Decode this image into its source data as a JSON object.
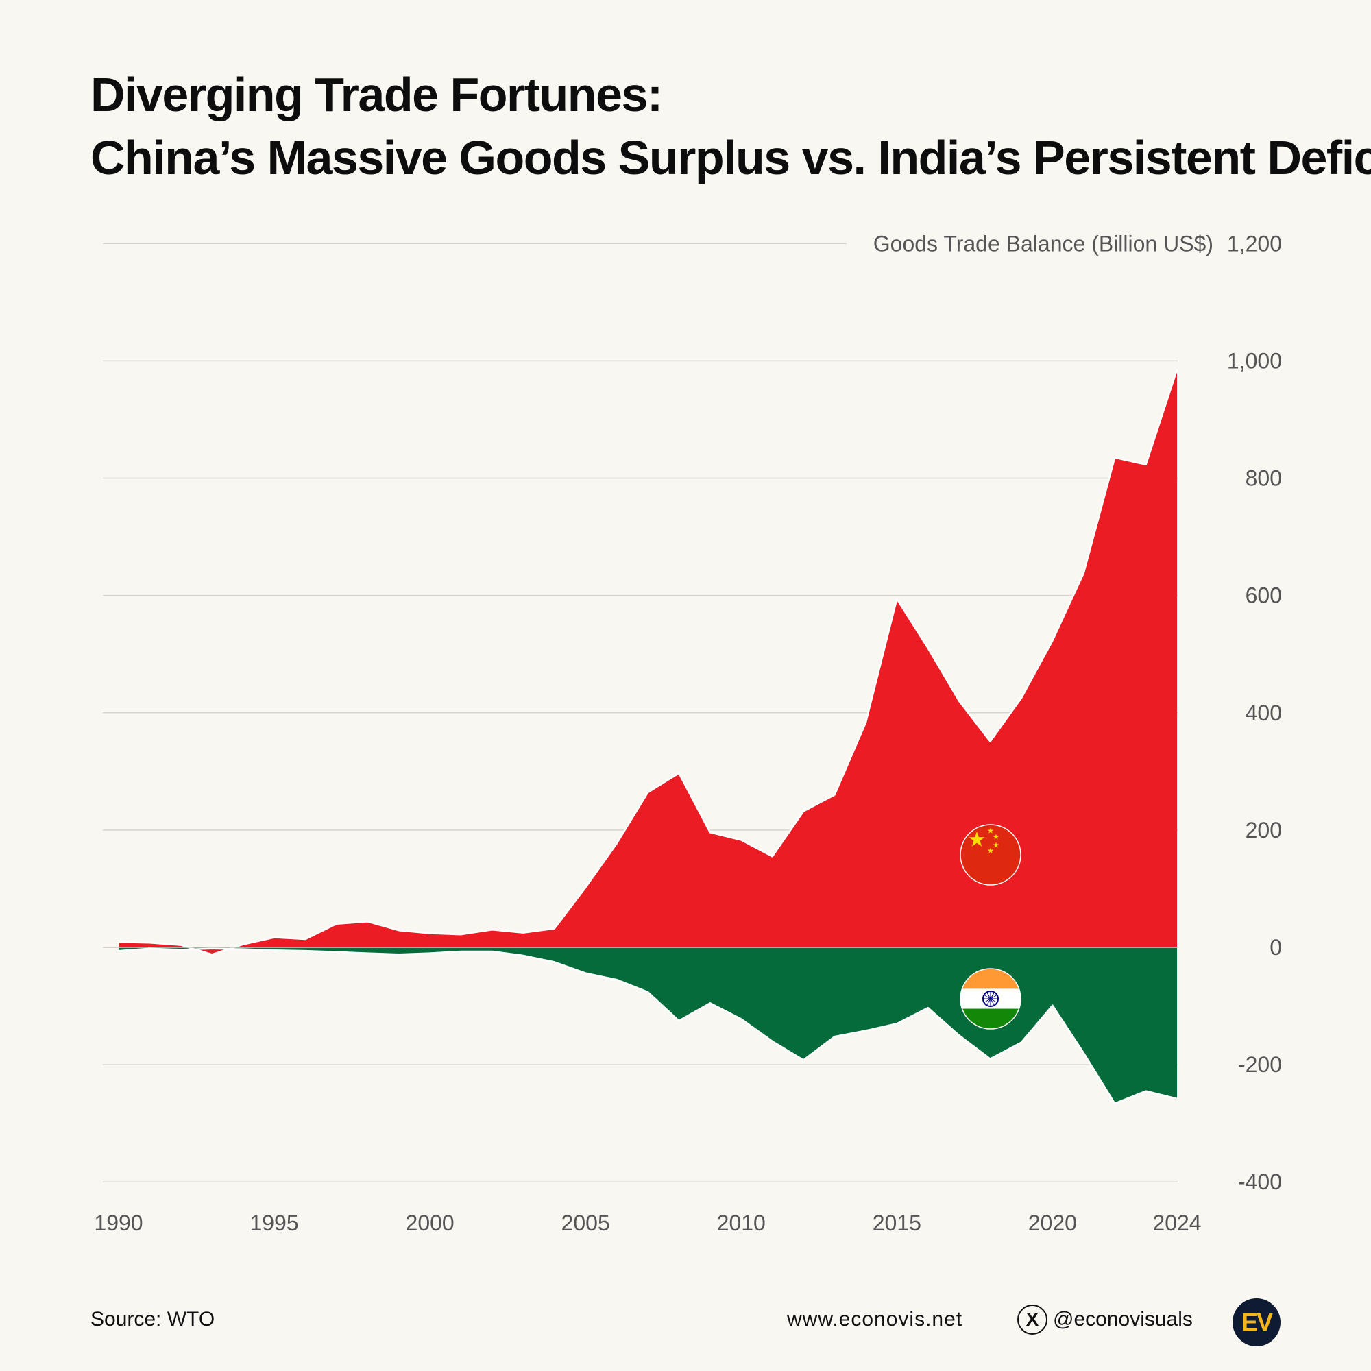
{
  "header": {
    "title_line1": "Diverging Trade Fortunes:",
    "title_line2": "China’s Massive Goods Surplus vs. India’s Persistent Deficit"
  },
  "footer": {
    "source": "Source: WTO",
    "website": "www.econovis.net",
    "handle": "@econovisuals",
    "x_icon_glyph": "X",
    "logo_text": "EV"
  },
  "chart_data": {
    "type": "area",
    "title": "",
    "ylabel": "Goods Trade Balance (Billion US$)",
    "xlabel": "",
    "ylim": [
      -400,
      1200
    ],
    "xlim": [
      1990,
      2024
    ],
    "yticks": [
      -400,
      -200,
      0,
      200,
      400,
      600,
      800,
      1000,
      1200
    ],
    "ytick_labels": [
      "-400",
      "-200",
      "0",
      "200",
      "400",
      "600",
      "800",
      "1,000",
      "1,200"
    ],
    "xticks": [
      1990,
      1995,
      2000,
      2005,
      2010,
      2015,
      2020,
      2024
    ],
    "xtick_labels": [
      "1990",
      "1995",
      "2000",
      "2005",
      "2010",
      "2015",
      "2020",
      "2024"
    ],
    "grid": true,
    "x": [
      1990,
      1991,
      1992,
      1993,
      1994,
      1995,
      1996,
      1997,
      1998,
      1999,
      2000,
      2001,
      2002,
      2003,
      2004,
      2005,
      2006,
      2007,
      2008,
      2009,
      2010,
      2011,
      2012,
      2013,
      2014,
      2015,
      2016,
      2017,
      2018,
      2019,
      2020,
      2021,
      2022,
      2023,
      2024
    ],
    "series": [
      {
        "name": "China",
        "icon": "china-flag-icon",
        "color": "#ec1c24",
        "values": [
          9,
          8,
          4,
          -12,
          5,
          17,
          14,
          40,
          44,
          29,
          24,
          22,
          30,
          25,
          32,
          102,
          177,
          264,
          297,
          196,
          183,
          155,
          232,
          260,
          383,
          594,
          510,
          420,
          351,
          425,
          523,
          638,
          835,
          823,
          985
        ]
      },
      {
        "name": "India",
        "icon": "india-flag-icon",
        "color": "#056b3b",
        "values": [
          -6,
          -2,
          -4,
          -2,
          -3,
          -5,
          -6,
          -8,
          -10,
          -12,
          -10,
          -7,
          -7,
          -14,
          -25,
          -44,
          -55,
          -76,
          -125,
          -95,
          -122,
          -160,
          -192,
          -152,
          -142,
          -130,
          -103,
          -150,
          -190,
          -162,
          -99,
          -180,
          -266,
          -245,
          -258
        ]
      }
    ]
  }
}
